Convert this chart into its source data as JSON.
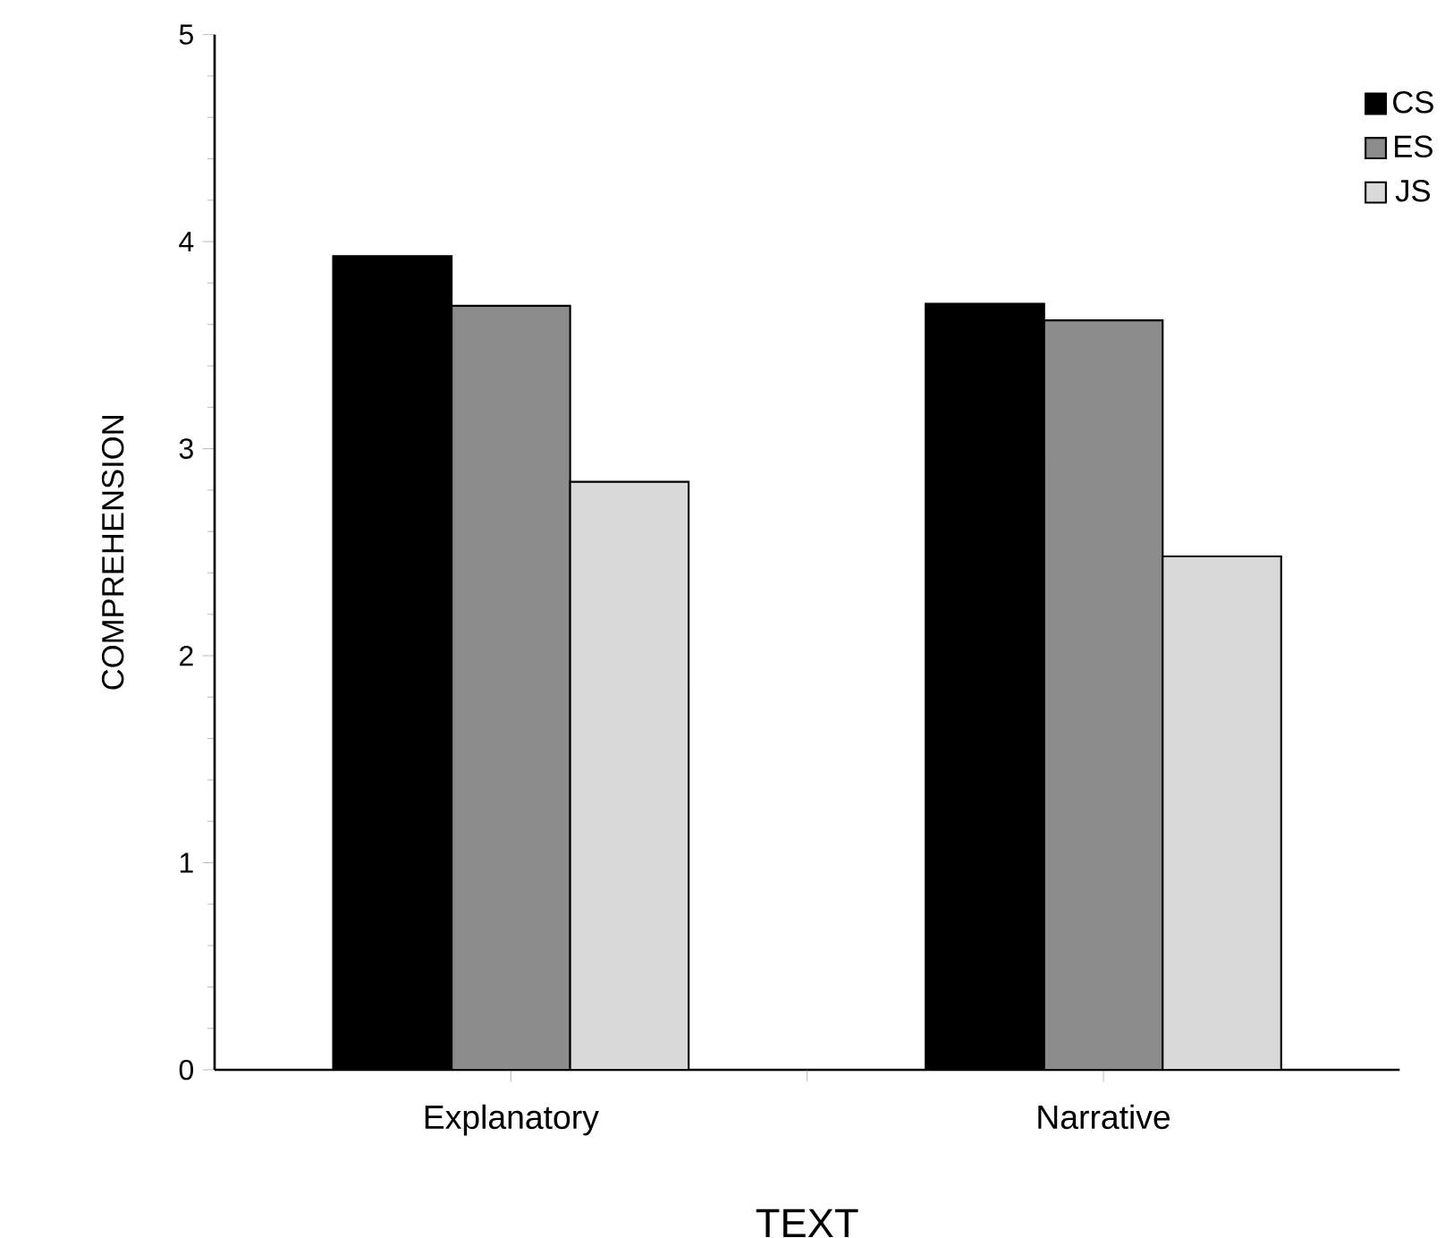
{
  "chart_data": {
    "type": "bar",
    "xlabel": "TEXT",
    "ylabel": "COMPREHENSION",
    "categories": [
      "Explanatory",
      "Narrative"
    ],
    "series": [
      {
        "name": "CS",
        "color": "#000000",
        "values": [
          3.93,
          3.7
        ]
      },
      {
        "name": "ES",
        "color": "#8c8c8c",
        "values": [
          3.69,
          3.62
        ]
      },
      {
        "name": "JS",
        "color": "#d9d9d9",
        "values": [
          2.84,
          2.48
        ]
      }
    ],
    "ylim": [
      0,
      5
    ],
    "yticks": [
      0,
      1,
      2,
      3,
      4,
      5
    ],
    "legend": "top right",
    "grid": false
  }
}
